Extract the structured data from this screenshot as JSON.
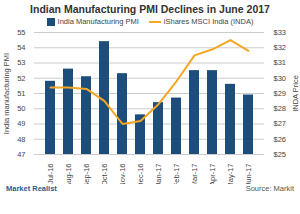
{
  "chart_data": {
    "type": "bar",
    "title": "Indian Manufacturing PMI Declines in June 2017",
    "categories": [
      "Jul-16",
      "Aug-16",
      "Sep-16",
      "Oct-16",
      "Nov-16",
      "Dec-16",
      "Jan-17",
      "Feb-17",
      "Mar-17",
      "Apr-17",
      "May-17",
      "Jun-17"
    ],
    "series": [
      {
        "name": "India Manufacturing PMI",
        "type": "bar",
        "color": "#1d4e7b",
        "values": [
          51.8,
          52.6,
          52.1,
          54.4,
          52.3,
          49.6,
          50.4,
          50.7,
          52.5,
          52.5,
          51.6,
          50.9
        ]
      },
      {
        "name": "iShares MSCI India (INDA)",
        "type": "line",
        "axis": "y2",
        "color": "#f5a623",
        "values": [
          29.4,
          29.4,
          29.3,
          28.5,
          27.0,
          27.2,
          28.3,
          29.8,
          31.5,
          31.9,
          32.5,
          31.8
        ]
      }
    ],
    "ylim": [
      47,
      55
    ],
    "yticks": [
      47,
      48,
      49,
      50,
      51,
      52,
      53,
      54,
      55
    ],
    "y2lim": [
      25,
      33
    ],
    "y2ticks": [
      {
        "value": 25,
        "label": "$25"
      },
      {
        "value": 26,
        "label": "$26"
      },
      {
        "value": 27,
        "label": "$27"
      },
      {
        "value": 28,
        "label": "$28"
      },
      {
        "value": 29,
        "label": "$29"
      },
      {
        "value": 30,
        "label": "$30"
      },
      {
        "value": 31,
        "label": "$31"
      },
      {
        "value": 32,
        "label": "$32"
      },
      {
        "value": 33,
        "label": "$33"
      }
    ],
    "ylabel": "India manufacturing PMI",
    "y2label": "INDA Price",
    "grid": true,
    "legend": "top",
    "annotations": [
      "Market Realist",
      "Source: Markit"
    ]
  }
}
